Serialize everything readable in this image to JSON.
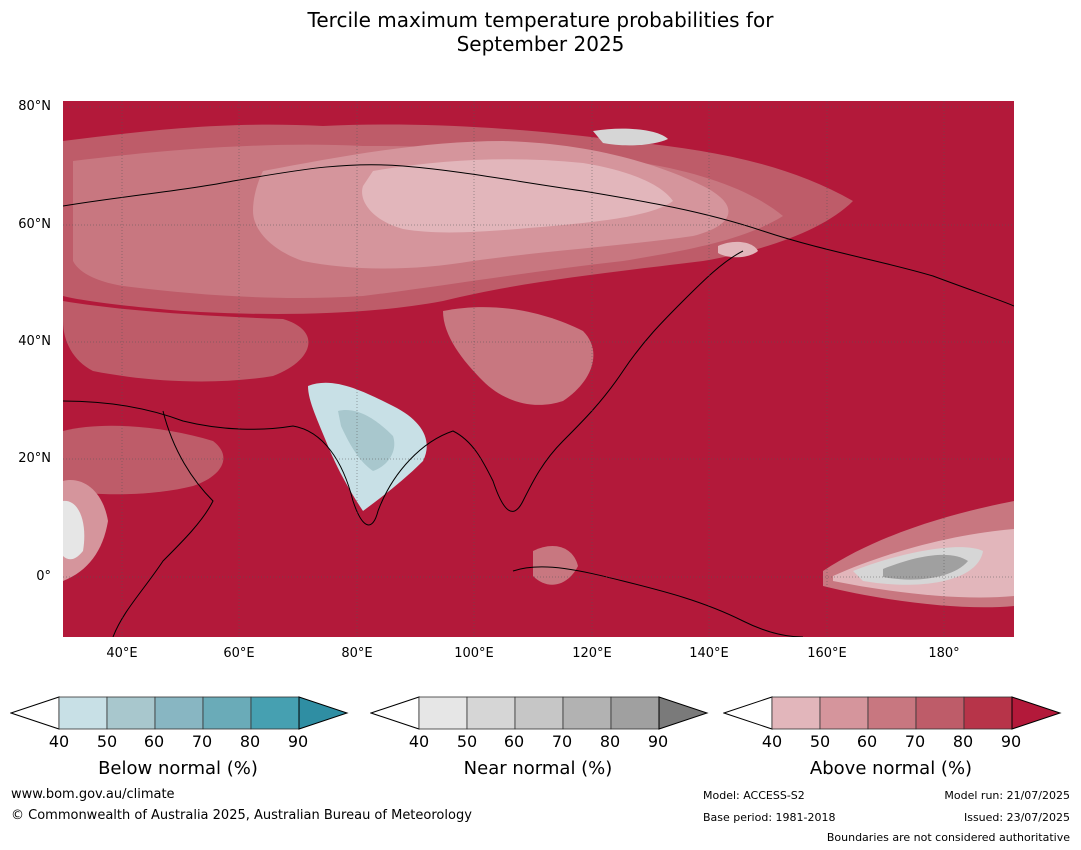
{
  "title_line1": "Tercile maximum temperature probabilities for",
  "title_line2": "September 2025",
  "lat_labels": [
    "80°N",
    "60°N",
    "40°N",
    "20°N",
    "0°"
  ],
  "lon_labels": [
    "40°E",
    "60°E",
    "80°E",
    "100°E",
    "120°E",
    "140°E",
    "160°E",
    "180°"
  ],
  "colorbars": [
    {
      "title": "Below normal (%)",
      "ticks": [
        "40",
        "50",
        "60",
        "70",
        "80",
        "90"
      ],
      "colors": [
        "#ffffff",
        "#c8e0e6",
        "#a8c7cd",
        "#88b6c2",
        "#6aabb8",
        "#46a0b1",
        "#2f8ea3"
      ]
    },
    {
      "title": "Near normal (%)",
      "ticks": [
        "40",
        "50",
        "60",
        "70",
        "80",
        "90"
      ],
      "colors": [
        "#ffffff",
        "#e6e6e6",
        "#d6d6d6",
        "#c6c6c6",
        "#b2b2b2",
        "#a0a0a0",
        "#7a7a7a"
      ]
    },
    {
      "title": "Above normal (%)",
      "ticks": [
        "40",
        "50",
        "60",
        "70",
        "80",
        "90"
      ],
      "colors": [
        "#ffffff",
        "#e2b6bb",
        "#d5959c",
        "#c87780",
        "#be5c69",
        "#b73449",
        "#b3193a"
      ]
    }
  ],
  "footer": {
    "website": "www.bom.gov.au/climate",
    "copyright": "© Commonwealth of Australia 2025, Australian Bureau of Meteorology",
    "model": "Model: ACCESS-S2",
    "base_period": "Base period: 1981-2018",
    "model_run": "Model run: 21/07/2025",
    "issued": "Issued: 23/07/2025",
    "disclaimer": "Boundaries are not considered authoritative"
  }
}
